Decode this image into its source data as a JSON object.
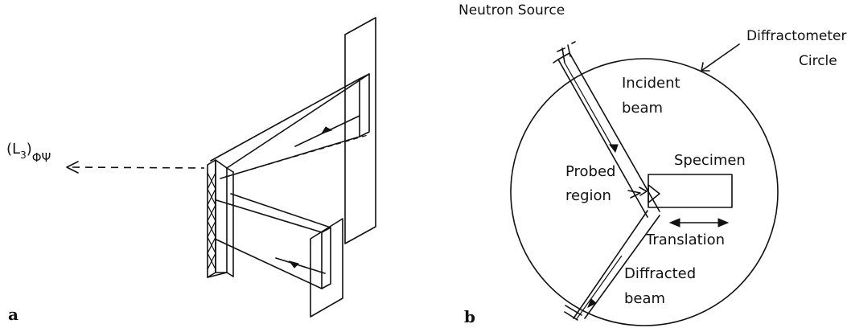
{
  "panel_a": {
    "panel_label": "a",
    "strain_label_main": "(L",
    "strain_label_sub3": "3",
    "strain_label_close": ")",
    "strain_label_subscript": "ΦΨ"
  },
  "panel_b": {
    "panel_label": "b",
    "neutron_source": "Neutron Source",
    "diffractometer_line1": "Diffractometer",
    "diffractometer_line2": "Circle",
    "incident_line1": "Incident",
    "incident_line2": "beam",
    "specimen": "Specimen",
    "probed_line1": "Probed",
    "probed_line2": "region",
    "translation": "Translation",
    "diffracted_line1": "Diffracted",
    "diffracted_line2": "beam"
  }
}
